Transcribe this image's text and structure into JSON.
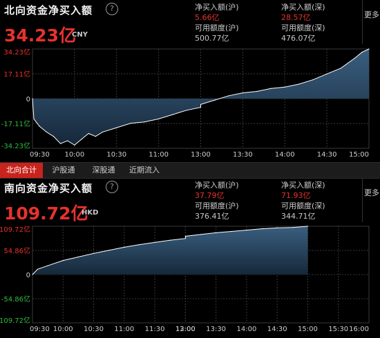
{
  "north": {
    "title": "北向资金净买入额",
    "value": "34.23亿",
    "currency": "CNY",
    "stats": {
      "hu_label": "净买入额(沪)",
      "hu_value": "5.66亿",
      "shen_label": "净买入额(深)",
      "shen_value": "28.57亿",
      "hu_quota_label": "可用额度(沪)",
      "hu_quota_value": "500.77亿",
      "shen_quota_label": "可用额度(深)",
      "shen_quota_value": "476.07亿"
    },
    "more": "更多"
  },
  "south": {
    "title": "南向资金净买入额",
    "value": "109.72亿",
    "currency": "HKD",
    "stats": {
      "hu_label": "净买入额(沪)",
      "hu_value": "37.79亿",
      "shen_label": "净买入额(深)",
      "shen_value": "71.93亿",
      "hu_quota_label": "可用额度(沪)",
      "hu_quota_value": "376.41亿",
      "shen_quota_label": "可用额度(深)",
      "shen_quota_value": "344.71亿"
    },
    "more": "更多"
  },
  "tabs": [
    {
      "label": "北向合计",
      "active": true
    },
    {
      "label": "沪股通",
      "active": false
    },
    {
      "label": "深股通",
      "active": false
    },
    {
      "label": "近期流入",
      "active": false
    }
  ],
  "chart_data": [
    {
      "type": "area",
      "series_name": "北向资金净买入额",
      "yticks": [
        "34.23亿",
        "17.11亿",
        "0",
        "-17.11亿",
        "-34.23亿"
      ],
      "ylim": [
        -34.23,
        34.23
      ],
      "xticks": [
        "09:30",
        "10:00",
        "10:30",
        "11:00",
        "13:00",
        "13:30",
        "14:00",
        "14:30",
        "15:00"
      ],
      "x": [
        "09:30",
        "09:31",
        "09:35",
        "09:40",
        "09:45",
        "09:50",
        "09:55",
        "10:00",
        "10:05",
        "10:10",
        "10:15",
        "10:20",
        "10:30",
        "10:40",
        "10:50",
        "11:00",
        "11:10",
        "11:20",
        "11:30",
        "13:00",
        "13:10",
        "13:20",
        "13:30",
        "13:40",
        "13:50",
        "14:00",
        "14:10",
        "14:20",
        "14:30",
        "14:40",
        "14:50",
        "14:55",
        "15:00"
      ],
      "values": [
        0,
        -14,
        -19,
        -23,
        -26,
        -31,
        -29,
        -32,
        -28,
        -24,
        -26,
        -23,
        -20,
        -17,
        -16,
        -14,
        -11,
        -8,
        -6,
        -4,
        -1,
        2,
        4,
        5,
        7,
        8,
        10,
        13,
        17,
        21,
        28,
        32,
        34.23
      ],
      "color": "#ffffff"
    },
    {
      "type": "area",
      "series_name": "南向资金净买入额",
      "yticks": [
        "109.72亿",
        "54.86亿",
        "0",
        "-54.86亿",
        "-109.72亿"
      ],
      "ylim": [
        -109.72,
        109.72
      ],
      "xticks": [
        "09:30",
        "10:00",
        "10:30",
        "11:00",
        "11:30",
        "12:00",
        "13:00",
        "13:30",
        "14:00",
        "14:30",
        "15:00",
        "15:30",
        "16:00"
      ],
      "x": [
        "09:30",
        "09:35",
        "09:45",
        "10:00",
        "10:15",
        "10:30",
        "10:45",
        "11:00",
        "11:15",
        "11:30",
        "11:45",
        "12:00",
        "13:00",
        "13:15",
        "13:30",
        "13:45",
        "14:00",
        "14:15",
        "14:30",
        "14:45",
        "15:00"
      ],
      "values": [
        0,
        12,
        20,
        32,
        40,
        48,
        55,
        62,
        68,
        73,
        78,
        82,
        87,
        91,
        95,
        98,
        101,
        104,
        106,
        107,
        109.72
      ],
      "color": "#ffffff"
    }
  ]
}
